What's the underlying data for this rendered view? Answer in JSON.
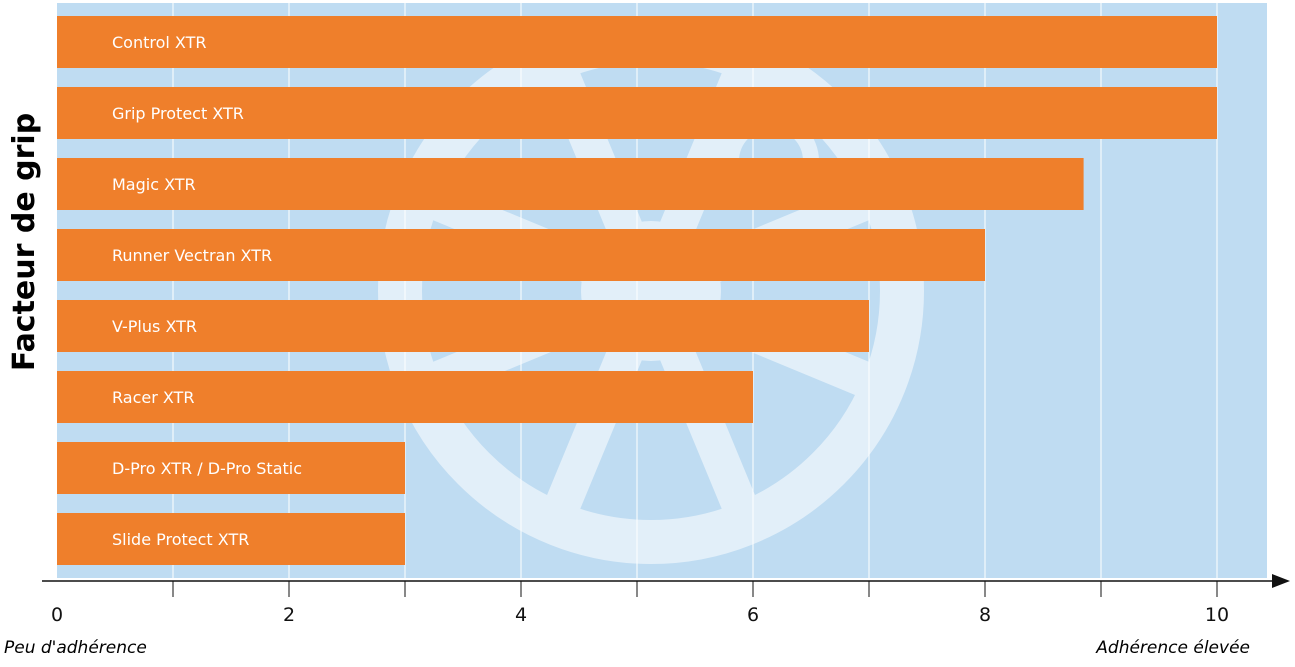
{
  "chart_data": {
    "type": "bar",
    "orientation": "horizontal",
    "ylabel": "Facteur de grip",
    "xlabel_low": "Peu d'adhérence",
    "xlabel_high": "Adhérence élevée",
    "xlim": [
      0,
      10.4
    ],
    "xticks": [
      0,
      2,
      4,
      6,
      8,
      10
    ],
    "grid": true,
    "categories": [
      "Control XTR",
      "Grip Protect XTR",
      "Magic XTR",
      "Runner Vectran XTR",
      "V-Plus XTR",
      "Racer XTR",
      "D-Pro XTR / D-Pro Static",
      "Slide Protect XTR"
    ],
    "values": [
      10,
      10,
      8.85,
      8,
      7,
      6,
      3,
      3
    ]
  },
  "colors": {
    "background": "#bfdcf2",
    "bar": "#ef7f2b",
    "grid": "#ffffff",
    "watermark": "#ffffff",
    "text": "#111111"
  }
}
